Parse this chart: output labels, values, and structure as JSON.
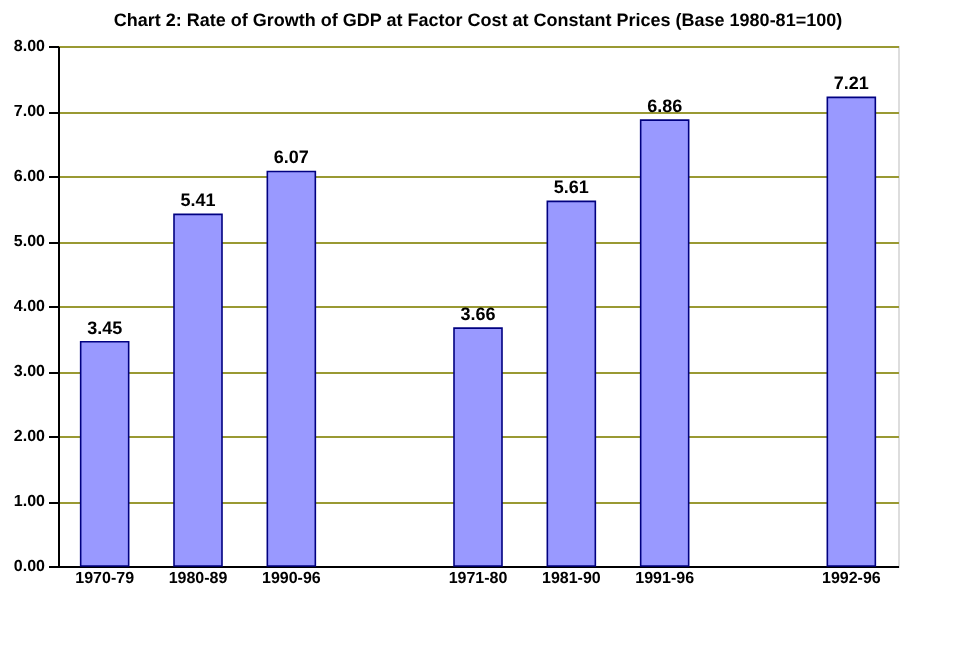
{
  "chart_data": {
    "type": "bar",
    "title": "Chart 2: Rate of Growth of GDP at Factor Cost at Constant Prices (Base 1980-81=100)",
    "categories": [
      "1970-79",
      "1980-89",
      "1990-96",
      null,
      "1971-80",
      "1981-90",
      "1991-96",
      null,
      "1992-96"
    ],
    "values": [
      3.45,
      5.41,
      6.07,
      null,
      3.66,
      5.61,
      6.86,
      null,
      7.21
    ],
    "value_labels": [
      "3.45",
      "5.41",
      "6.07",
      null,
      "3.66",
      "5.61",
      "6.86",
      null,
      "7.21"
    ],
    "color": "#9999ff",
    "ylim": [
      0,
      8
    ],
    "yticks": [
      {
        "value": 0,
        "label": "0.00"
      },
      {
        "value": 1,
        "label": "1.00"
      },
      {
        "value": 2,
        "label": "2.00"
      },
      {
        "value": 3,
        "label": "3.00"
      },
      {
        "value": 4,
        "label": "4.00"
      },
      {
        "value": 5,
        "label": "5.00"
      },
      {
        "value": 6,
        "label": "6.00"
      },
      {
        "value": 7,
        "label": "7.00"
      },
      {
        "value": 8,
        "label": "8.00"
      }
    ],
    "grid": "y"
  }
}
